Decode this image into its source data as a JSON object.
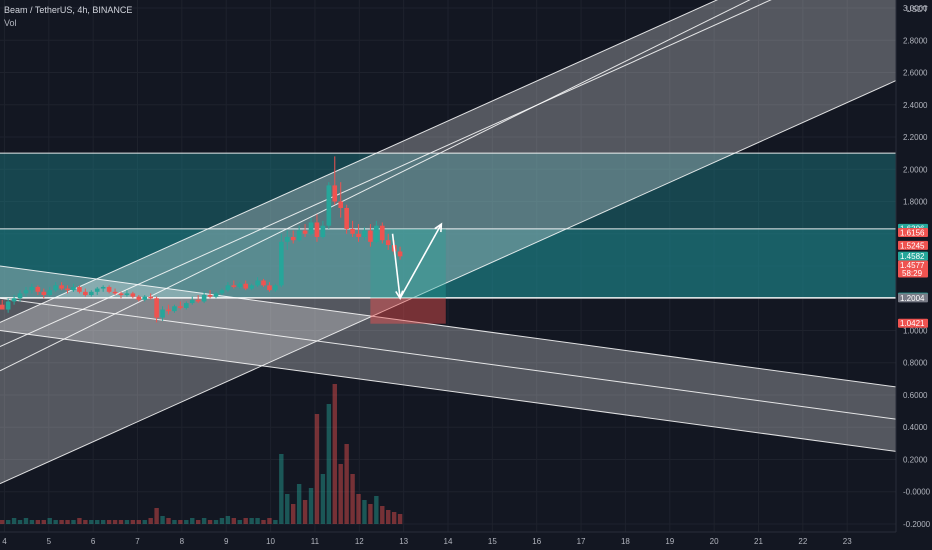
{
  "header": {
    "symbol_line": "Beam / TetherUS, 4h, BINANCE",
    "volume_label": "Vol"
  },
  "chart_data": {
    "type": "candlestick",
    "currency": "USDT",
    "ylim": [
      -0.25,
      3.05
    ],
    "y_ticks": [
      "3.0000",
      "2.8000",
      "2.6000",
      "2.4000",
      "2.2000",
      "2.0000",
      "1.8000",
      "1.6000",
      "1.4000",
      "1.2000",
      "1.0000",
      "0.8000",
      "0.6000",
      "0.4000",
      "0.2000",
      "-0.0000",
      "-0.2000"
    ],
    "y_tick_values": [
      3.0,
      2.8,
      2.6,
      2.4,
      2.2,
      2.0,
      1.8,
      1.6,
      1.4,
      1.2,
      1.0,
      0.8,
      0.6,
      0.4,
      0.2,
      0.0,
      -0.2
    ],
    "x_ticks": [
      "4",
      "5",
      "6",
      "7",
      "8",
      "9",
      "10",
      "11",
      "12",
      "13",
      "14",
      "15",
      "16",
      "17",
      "18",
      "19",
      "20",
      "21",
      "22",
      "23"
    ],
    "x_tick_values": [
      4,
      5,
      6,
      7,
      8,
      9,
      10,
      11,
      12,
      13,
      14,
      15,
      16,
      17,
      18,
      19,
      20,
      21,
      22,
      23
    ],
    "xlim": [
      3.9,
      24.1
    ],
    "last_candle_day": 12.92,
    "ohlc": [
      [
        1.16,
        1.19,
        1.14,
        1.13
      ],
      [
        1.13,
        1.2,
        1.11,
        1.18
      ],
      [
        1.18,
        1.22,
        1.16,
        1.2
      ],
      [
        1.2,
        1.25,
        1.18,
        1.23
      ],
      [
        1.23,
        1.27,
        1.21,
        1.25
      ],
      [
        1.25,
        1.29,
        1.23,
        1.27
      ],
      [
        1.27,
        1.28,
        1.22,
        1.24
      ],
      [
        1.24,
        1.26,
        1.2,
        1.22
      ],
      [
        1.22,
        1.27,
        1.21,
        1.25
      ],
      [
        1.25,
        1.3,
        1.24,
        1.28
      ],
      [
        1.28,
        1.3,
        1.25,
        1.26
      ],
      [
        1.26,
        1.28,
        1.23,
        1.25
      ],
      [
        1.25,
        1.29,
        1.24,
        1.27
      ],
      [
        1.27,
        1.28,
        1.23,
        1.24
      ],
      [
        1.24,
        1.26,
        1.21,
        1.22
      ],
      [
        1.22,
        1.25,
        1.21,
        1.24
      ],
      [
        1.24,
        1.27,
        1.22,
        1.26
      ],
      [
        1.26,
        1.28,
        1.24,
        1.27
      ],
      [
        1.27,
        1.28,
        1.23,
        1.24
      ],
      [
        1.24,
        1.26,
        1.22,
        1.23
      ],
      [
        1.23,
        1.24,
        1.2,
        1.22
      ],
      [
        1.22,
        1.25,
        1.21,
        1.23
      ],
      [
        1.23,
        1.24,
        1.2,
        1.21
      ],
      [
        1.21,
        1.22,
        1.18,
        1.19
      ],
      [
        1.19,
        1.22,
        1.18,
        1.21
      ],
      [
        1.21,
        1.23,
        1.19,
        1.2
      ],
      [
        1.2,
        1.21,
        1.05,
        1.08
      ],
      [
        1.08,
        1.15,
        1.06,
        1.13
      ],
      [
        1.13,
        1.16,
        1.1,
        1.12
      ],
      [
        1.12,
        1.16,
        1.11,
        1.15
      ],
      [
        1.15,
        1.18,
        1.13,
        1.14
      ],
      [
        1.14,
        1.18,
        1.13,
        1.17
      ],
      [
        1.17,
        1.21,
        1.16,
        1.19
      ],
      [
        1.19,
        1.22,
        1.17,
        1.18
      ],
      [
        1.18,
        1.24,
        1.17,
        1.22
      ],
      [
        1.22,
        1.25,
        1.2,
        1.21
      ],
      [
        1.21,
        1.24,
        1.2,
        1.23
      ],
      [
        1.23,
        1.26,
        1.22,
        1.25
      ],
      [
        1.25,
        1.3,
        1.24,
        1.28
      ],
      [
        1.28,
        1.31,
        1.26,
        1.27
      ],
      [
        1.27,
        1.3,
        1.26,
        1.29
      ],
      [
        1.29,
        1.31,
        1.25,
        1.26
      ],
      [
        1.26,
        1.29,
        1.25,
        1.28
      ],
      [
        1.28,
        1.33,
        1.27,
        1.31
      ],
      [
        1.31,
        1.32,
        1.27,
        1.28
      ],
      [
        1.28,
        1.3,
        1.24,
        1.25
      ],
      [
        1.25,
        1.29,
        1.24,
        1.28
      ],
      [
        1.28,
        1.6,
        1.27,
        1.55
      ],
      [
        1.55,
        1.62,
        1.5,
        1.58
      ],
      [
        1.58,
        1.62,
        1.54,
        1.56
      ],
      [
        1.56,
        1.65,
        1.55,
        1.62
      ],
      [
        1.62,
        1.66,
        1.58,
        1.6
      ],
      [
        1.6,
        1.7,
        1.59,
        1.67
      ],
      [
        1.67,
        1.72,
        1.55,
        1.58
      ],
      [
        1.58,
        1.68,
        1.57,
        1.65
      ],
      [
        1.65,
        1.92,
        1.63,
        1.9
      ],
      [
        1.9,
        2.08,
        1.78,
        1.8
      ],
      [
        1.8,
        1.92,
        1.7,
        1.76
      ],
      [
        1.76,
        1.78,
        1.6,
        1.63
      ],
      [
        1.63,
        1.68,
        1.58,
        1.6
      ],
      [
        1.6,
        1.66,
        1.55,
        1.58
      ],
      [
        1.58,
        1.64,
        1.56,
        1.62
      ],
      [
        1.62,
        1.66,
        1.52,
        1.55
      ],
      [
        1.55,
        1.68,
        1.54,
        1.65
      ],
      [
        1.65,
        1.67,
        1.54,
        1.56
      ],
      [
        1.56,
        1.6,
        1.5,
        1.53
      ],
      [
        1.53,
        1.56,
        1.47,
        1.49
      ],
      [
        1.49,
        1.52,
        1.44,
        1.46
      ]
    ],
    "volume": [
      0.02,
      0.02,
      0.03,
      0.02,
      0.03,
      0.02,
      0.02,
      0.02,
      0.03,
      0.02,
      0.02,
      0.02,
      0.02,
      0.03,
      0.02,
      0.02,
      0.02,
      0.02,
      0.02,
      0.02,
      0.02,
      0.02,
      0.02,
      0.02,
      0.02,
      0.03,
      0.08,
      0.04,
      0.03,
      0.02,
      0.02,
      0.02,
      0.03,
      0.02,
      0.03,
      0.02,
      0.02,
      0.03,
      0.04,
      0.03,
      0.02,
      0.03,
      0.03,
      0.03,
      0.02,
      0.03,
      0.02,
      0.35,
      0.15,
      0.1,
      0.2,
      0.12,
      0.18,
      0.55,
      0.25,
      0.6,
      0.7,
      0.3,
      0.4,
      0.25,
      0.15,
      0.12,
      0.1,
      0.14,
      0.09,
      0.07,
      0.06,
      0.05
    ],
    "vol_max": 0.7,
    "vol_panel_ylim": [
      -0.25,
      0.6
    ],
    "zones": [
      {
        "y_low": 1.2041,
        "y_high": 2.1
      },
      {
        "y_low": 1.2041,
        "y_high": 1.6306
      }
    ],
    "hlines": [
      2.1,
      1.6306,
      1.2041,
      1.2004
    ],
    "channels": [
      {
        "name": "upper",
        "x_points": [
          3.9,
          24.1
        ],
        "lines": [
          [
            1.05,
            3.55
          ],
          [
            0.9,
            3.4
          ],
          [
            0.05,
            2.55
          ]
        ]
      },
      {
        "name": "lower",
        "x_points": [
          3.9,
          24.1
        ],
        "lines": [
          [
            1.4,
            0.65
          ],
          [
            1.2,
            0.45
          ],
          [
            1.0,
            0.25
          ]
        ]
      },
      {
        "name": "mid",
        "x_points": [
          3.9,
          24.1
        ],
        "lines": [
          [
            0.75,
            3.5
          ]
        ]
      }
    ],
    "position": {
      "x_start": 12.25,
      "x_end": 13.95,
      "entry": 1.2004,
      "target": 1.6306,
      "stop": 1.0421
    },
    "arrows": [
      {
        "from": [
          12.75,
          1.6
        ],
        "to": [
          12.92,
          1.2
        ]
      },
      {
        "from": [
          12.92,
          1.2
        ],
        "to": [
          13.85,
          1.66
        ]
      }
    ],
    "price_badges": [
      {
        "value": "1.6306",
        "y": 1.6306,
        "color": "#26a69a"
      },
      {
        "value": "1.6156",
        "y": 1.605,
        "color": "#ef5350"
      },
      {
        "value": "1.5245",
        "y": 1.5245,
        "color": "#ef5350"
      },
      {
        "value": "1.4582",
        "y": 1.4582,
        "color": "#26a69a"
      },
      {
        "value": "1.4577",
        "y": 1.403,
        "color": "#ef5350",
        "sub": "58:29"
      },
      {
        "value": "1.2041",
        "y": 1.2041,
        "color": "#26a69a"
      },
      {
        "value": "1.2004",
        "y": 1.199,
        "color": "#787b86"
      },
      {
        "value": "1.0421",
        "y": 1.0421,
        "color": "#ef5350"
      }
    ],
    "colors": {
      "background": "#131722",
      "up": "#26a69a",
      "down": "#ef5350",
      "zone": "#1c7e86",
      "channel": "#ffffff",
      "text": "#b2b5be"
    }
  }
}
